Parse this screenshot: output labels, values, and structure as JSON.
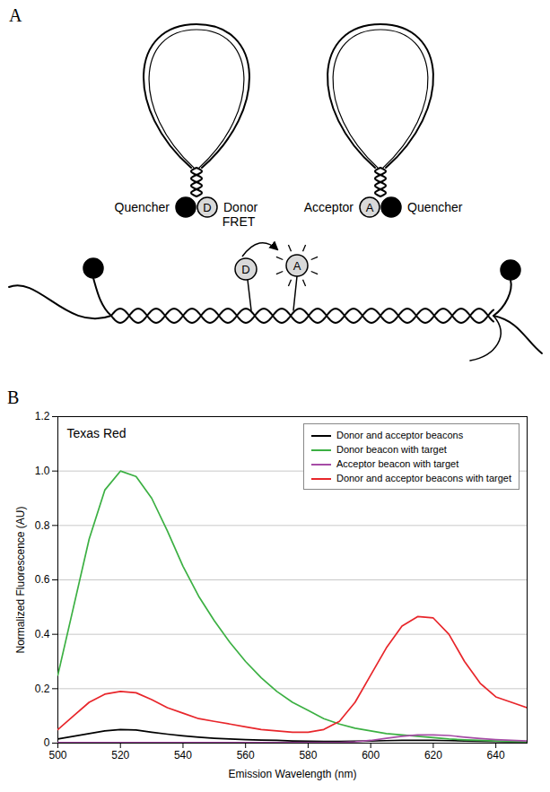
{
  "panel_a": {
    "letter": "A",
    "beacons": [
      {
        "labels": [
          "Quencher",
          "Donor"
        ],
        "dye": "D"
      },
      {
        "labels": [
          "Acceptor",
          "Quencher"
        ],
        "dye": "A"
      }
    ],
    "hybrid": {
      "donor": "D",
      "acceptor": "A",
      "arrow_label": "FRET"
    }
  },
  "chart_data": {
    "letter": "B",
    "type": "line",
    "title": "Texas Red",
    "x_label": "Emission Wavelength (nm)",
    "y_label": "Normalized Fluorescence (AU)",
    "x": [
      500,
      505,
      510,
      515,
      520,
      525,
      530,
      535,
      540,
      545,
      550,
      555,
      560,
      565,
      570,
      575,
      580,
      585,
      590,
      595,
      600,
      605,
      610,
      615,
      620,
      625,
      630,
      635,
      640,
      645,
      650
    ],
    "series": [
      {
        "name": "Donor and acceptor beacons",
        "color": "#000000",
        "values": [
          0.015,
          0.025,
          0.035,
          0.045,
          0.05,
          0.048,
          0.04,
          0.033,
          0.027,
          0.022,
          0.018,
          0.015,
          0.013,
          0.011,
          0.01,
          0.008,
          0.007,
          0.006,
          0.006,
          0.007,
          0.008,
          0.009,
          0.01,
          0.01,
          0.01,
          0.009,
          0.008,
          0.007,
          0.006,
          0.005,
          0.005
        ]
      },
      {
        "name": "Donor beacon with target",
        "color": "#3cb043",
        "values": [
          0.25,
          0.5,
          0.75,
          0.93,
          1.0,
          0.98,
          0.9,
          0.78,
          0.65,
          0.54,
          0.45,
          0.37,
          0.3,
          0.24,
          0.19,
          0.15,
          0.12,
          0.09,
          0.07,
          0.055,
          0.045,
          0.035,
          0.03,
          0.025,
          0.02,
          0.015,
          0.012,
          0.01,
          0.008,
          0.006,
          0.005
        ]
      },
      {
        "name": "Acceptor beacon with target",
        "color": "#a64ca6",
        "values": [
          0.002,
          0.002,
          0.002,
          0.002,
          0.002,
          0.002,
          0.002,
          0.002,
          0.002,
          0.002,
          0.002,
          0.002,
          0.002,
          0.002,
          0.002,
          0.002,
          0.002,
          0.002,
          0.002,
          0.005,
          0.01,
          0.018,
          0.025,
          0.03,
          0.03,
          0.028,
          0.022,
          0.017,
          0.013,
          0.01,
          0.008
        ]
      },
      {
        "name": "Donor and acceptor beacons with target",
        "color": "#e8262b",
        "values": [
          0.05,
          0.1,
          0.15,
          0.18,
          0.19,
          0.185,
          0.16,
          0.13,
          0.11,
          0.09,
          0.08,
          0.07,
          0.06,
          0.05,
          0.045,
          0.04,
          0.04,
          0.05,
          0.08,
          0.15,
          0.25,
          0.35,
          0.43,
          0.465,
          0.46,
          0.4,
          0.3,
          0.22,
          0.17,
          0.15,
          0.13
        ]
      }
    ],
    "xlim": [
      500,
      650
    ],
    "xticks": [
      500,
      520,
      540,
      560,
      580,
      600,
      620,
      640
    ],
    "ylim": [
      0,
      1.2
    ],
    "yticks": [
      0,
      0.2,
      0.4,
      0.6,
      0.8,
      {
        "value": 1,
        "label": "1.0"
      },
      1.2
    ],
    "grid": true,
    "legend": "top-right"
  }
}
